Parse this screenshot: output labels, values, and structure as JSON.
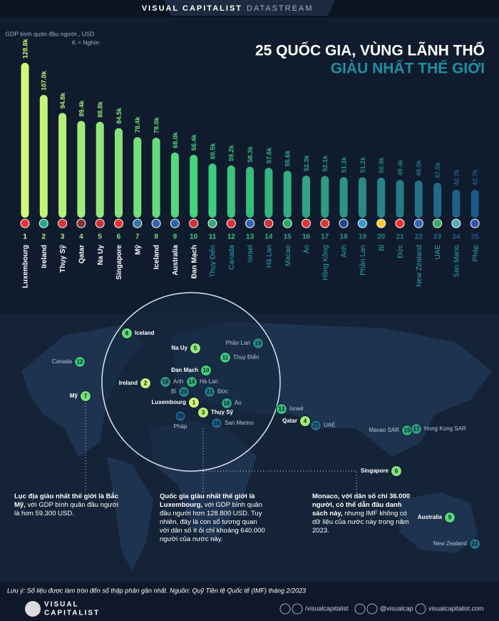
{
  "header": {
    "brand": "VISUAL CAPITALIST",
    "product": "DATASTREAM"
  },
  "chart_data": {
    "type": "lollipop",
    "title": "25 QUỐC GIA, VÙNG LÃNH THỔ",
    "subtitle": "GIÀU NHẤT THẾ GIỚI",
    "y_label": "GDP bình quân đầu người , USD",
    "unit_note": "K = Nghìn",
    "ranks": [
      1,
      2,
      3,
      4,
      5,
      6,
      7,
      8,
      9,
      10,
      11,
      12,
      13,
      14,
      15,
      16,
      17,
      18,
      19,
      20,
      21,
      22,
      23,
      24,
      25
    ],
    "categories": [
      "Luxembourg",
      "Ireland",
      "Thụy Sỹ",
      "Qatar",
      "Na Uy",
      "Singapore",
      "Mỹ",
      "Iceland",
      "Australia",
      "Đan Mạch",
      "Thụy Điển",
      "Canada",
      "Israel",
      "Hà Lan",
      "Macao",
      "Áo",
      "Hồng Kông",
      "Anh",
      "Phần Lan",
      "Bỉ",
      "Đức",
      "New Zealand",
      "UAE",
      "San Mario",
      "Pháp"
    ],
    "values": [
      128.8,
      107.0,
      94.8,
      89.4,
      88.8,
      84.5,
      78.4,
      78.0,
      68.0,
      66.4,
      60.5,
      59.2,
      58.3,
      57.6,
      55.6,
      52.3,
      52.1,
      51.3,
      51.2,
      50.9,
      49.4,
      49.0,
      47.5,
      42.7,
      42.7
    ],
    "value_labels": [
      "128.8k",
      "107.0k",
      "94.8k",
      "89.4k",
      "88.8k",
      "84.5k",
      "78.4k",
      "78.0k",
      "68.0k",
      "66.4k",
      "60.5k",
      "59.2k",
      "58.3k",
      "57.6k",
      "55.6k",
      "52.3k",
      "52.1k",
      "51.3k",
      "51.2k",
      "50.9k",
      "49.4k",
      "49.0k",
      "47.5k",
      "42.7k",
      "42.7k"
    ],
    "palette": [
      "#d4f77a",
      "#3ed07c",
      "#1c5a8a"
    ]
  },
  "map": {
    "labels": [
      {
        "name": "Iceland",
        "rank": 8
      },
      {
        "name": "Na Uy",
        "rank": 5
      },
      {
        "name": "Phần Lan",
        "rank": 19
      },
      {
        "name": "Thụy Điển",
        "rank": 11
      },
      {
        "name": "Canada",
        "rank": 12
      },
      {
        "name": "Đan Mạch",
        "rank": 10
      },
      {
        "name": "Ireland",
        "rank": 2
      },
      {
        "name": "Anh",
        "rank": 18
      },
      {
        "name": "Hà Lan",
        "rank": 14
      },
      {
        "name": "Bỉ",
        "rank": 20
      },
      {
        "name": "Đức",
        "rank": 21
      },
      {
        "name": "Mỹ",
        "rank": 7
      },
      {
        "name": "Luxembourg",
        "rank": 1
      },
      {
        "name": "Áo",
        "rank": 16
      },
      {
        "name": "Thụy Sỹ",
        "rank": 3
      },
      {
        "name": "Pháp",
        "rank": 25
      },
      {
        "name": "San Marino",
        "rank": 24
      },
      {
        "name": "Israel",
        "rank": 13
      },
      {
        "name": "Qatar",
        "rank": 4
      },
      {
        "name": "UAE",
        "rank": 23
      },
      {
        "name": "Macao SAR",
        "rank": 15
      },
      {
        "name": "Hong Kong SAR",
        "rank": 17
      },
      {
        "name": "Singapore",
        "rank": 6
      },
      {
        "name": "Australia",
        "rank": 9
      },
      {
        "name": "New Zealand",
        "rank": 22
      }
    ],
    "notes": [
      {
        "lead": "Lục địa giàu nhất thế giới là Bắc Mỹ,",
        "body": "với GDP bình quân đầu người là hơn 59.300 USD."
      },
      {
        "lead": "Quốc gia giàu nhất thế giới là Luxembourg,",
        "body": "với GDP bình quân đầu người hơn 128.800 USD. Tuy nhiên, đây là con số tương quan với dân số ít ỏi chỉ khoảng 640.000 người của nước này."
      },
      {
        "lead": "Monaco, với dân số chỉ 36.000 người, có thể dẫn đầu danh sách này,",
        "body": "nhưng IMF không có dữ liệu của nước này trong năm 2023."
      }
    ]
  },
  "footnote": "Lưu ý: Số liệu được làm tròn đến số thập phân gần nhất. Nguồn: Quỹ Tiền tệ Quốc tế (IMF) tháng 2/2023",
  "footer": {
    "logo_top": "VISUAL",
    "logo_bottom": "CAPITALIST",
    "facebook": "/visualcapitalist",
    "twitter": "@visualcap",
    "website": "visualcapitalist.com"
  }
}
